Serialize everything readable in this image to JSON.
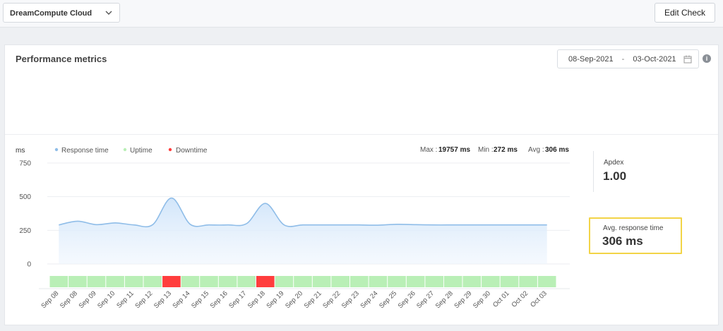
{
  "topbar": {
    "account_select": "DreamCompute Cloud",
    "edit_button": "Edit Check"
  },
  "panel": {
    "title": "Performance metrics",
    "date_from": "08-Sep-2021",
    "date_sep": "-",
    "date_to": "03-Oct-2021",
    "info_glyph": "i"
  },
  "stats": {
    "max_label": "Max :",
    "max_value": "19757 ms",
    "min_label": "Min :",
    "min_value": "272 ms",
    "avg_label": "Avg :",
    "avg_value": "306 ms"
  },
  "apdex": {
    "label": "Apdex",
    "value": "1.00"
  },
  "avg_response": {
    "label": "Avg. response time",
    "value": "306 ms"
  },
  "colors": {
    "response": "#8fbde8",
    "uptime": "#b9efb6",
    "downtime": "#ff3d3d",
    "highlight": "#f2d447"
  },
  "chart_data": {
    "type": "area",
    "ylabel": "ms",
    "ylim": [
      0,
      750
    ],
    "yticks": [
      0,
      250,
      500,
      750
    ],
    "legend": [
      {
        "name": "Response time",
        "color": "#8fbde8"
      },
      {
        "name": "Uptime",
        "color": "#b9efb6"
      },
      {
        "name": "Downtime",
        "color": "#ff3d3d"
      }
    ],
    "categories": [
      "Sep 08",
      "Sep 08",
      "Sep 09",
      "Sep 10",
      "Sep 11",
      "Sep 12",
      "Sep 13",
      "Sep 14",
      "Sep 15",
      "Sep 16",
      "Sep 17",
      "Sep 18",
      "Sep 19",
      "Sep 20",
      "Sep 21",
      "Sep 22",
      "Sep 23",
      "Sep 24",
      "Sep 25",
      "Sep 26",
      "Sep 27",
      "Sep 28",
      "Sep 29",
      "Sep 30",
      "Oct 01",
      "Oct 02",
      "Oct 03"
    ],
    "series": [
      {
        "name": "Response time",
        "values": [
          290,
          318,
          292,
          305,
          290,
          292,
          490,
          295,
          290,
          290,
          300,
          450,
          290,
          290,
          290,
          290,
          290,
          288,
          295,
          292,
          290,
          290,
          290,
          290,
          290,
          290,
          290
        ]
      }
    ],
    "status": [
      "up",
      "up",
      "up",
      "up",
      "up",
      "up",
      "down",
      "up",
      "up",
      "up",
      "up",
      "down",
      "up",
      "up",
      "up",
      "up",
      "up",
      "up",
      "up",
      "up",
      "up",
      "up",
      "up",
      "up",
      "up",
      "up",
      "up"
    ]
  }
}
